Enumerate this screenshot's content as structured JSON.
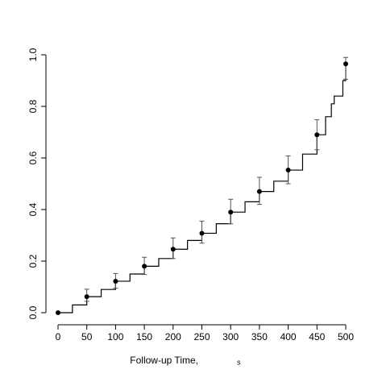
{
  "chart_data": {
    "type": "line",
    "xlabel": "Follow-up Time,",
    "xlabel_unit": "s",
    "xlim": [
      0,
      500
    ],
    "xticks": [
      0,
      50,
      100,
      150,
      200,
      250,
      300,
      350,
      400,
      450,
      500
    ],
    "ylim": [
      0,
      1
    ],
    "yticks": [
      {
        "value": 0,
        "label": "0.0"
      },
      0.2,
      0.4,
      0.6,
      0.8,
      {
        "value": 1,
        "label": "1.0"
      }
    ],
    "series": [
      {
        "color": "#000000",
        "step": true,
        "x": [
          0,
          25,
          50,
          75,
          100,
          125,
          150,
          175,
          200,
          225,
          250,
          275,
          300,
          325,
          350,
          375,
          400,
          425,
          450,
          465,
          475,
          480,
          490,
          495,
          500
        ],
        "values": [
          0,
          0.03,
          0.062,
          0.09,
          0.122,
          0.15,
          0.18,
          0.21,
          0.246,
          0.28,
          0.308,
          0.345,
          0.39,
          0.43,
          0.47,
          0.51,
          0.553,
          0.615,
          0.69,
          0.76,
          0.81,
          0.84,
          0.84,
          0.9,
          0.965
        ]
      },
      {
        "color": "#000000",
        "marker": "point",
        "x": [
          0,
          50,
          100,
          150,
          200,
          250,
          300,
          350,
          400,
          450,
          500
        ],
        "values": [
          0,
          0.062,
          0.122,
          0.18,
          0.246,
          0.308,
          0.39,
          0.47,
          0.553,
          0.69,
          0.965
        ],
        "lower": [
          0,
          0.044,
          0.095,
          0.148,
          0.21,
          0.27,
          0.345,
          0.42,
          0.5,
          0.632,
          0.905
        ],
        "upper": [
          0,
          0.091,
          0.152,
          0.215,
          0.29,
          0.355,
          0.44,
          0.525,
          0.608,
          0.748,
          0.99
        ]
      }
    ]
  }
}
